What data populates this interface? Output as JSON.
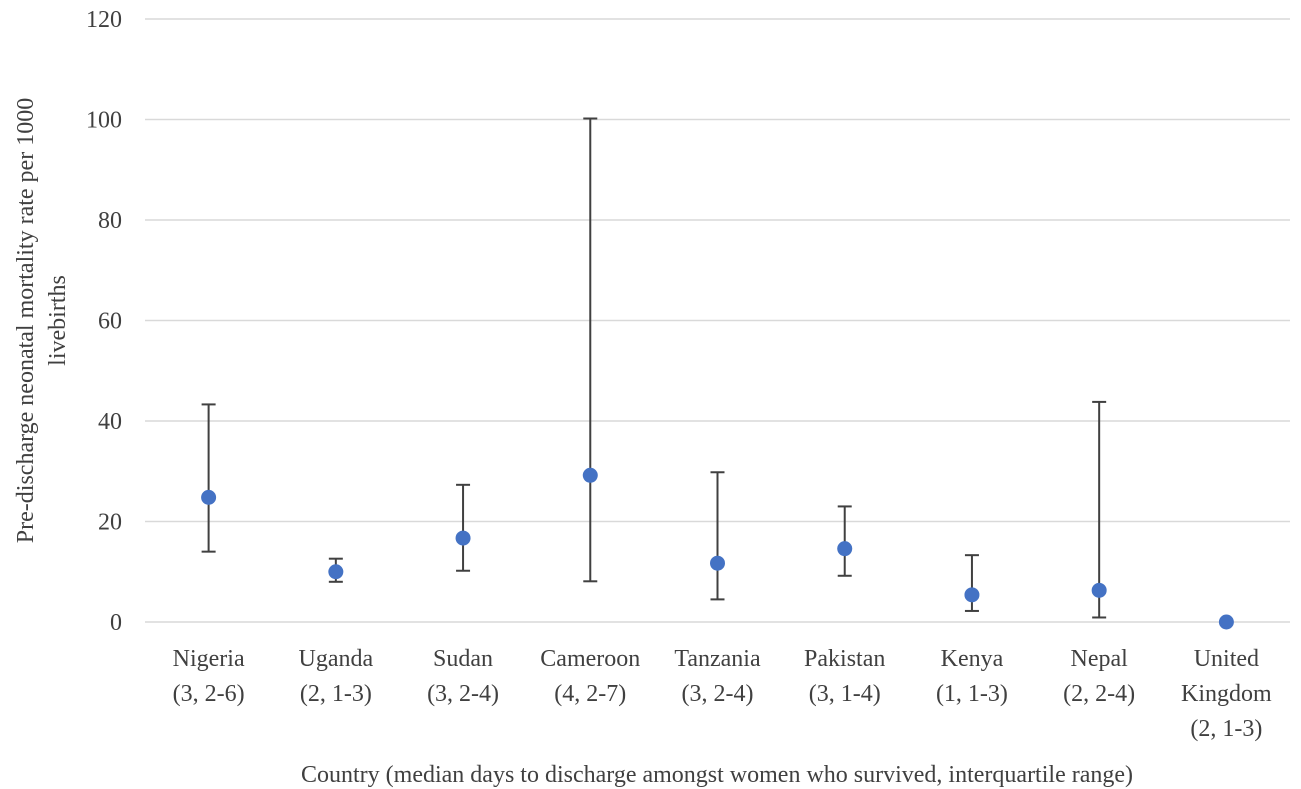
{
  "chart_data": {
    "type": "scatter",
    "title": "",
    "xlabel": "Country (median days to discharge amongst women who survived, interquartile range)",
    "ylabel_lines": [
      "Pre-discharge neonatal mortality  rate per 1000",
      "livebirths"
    ],
    "ylim": [
      0,
      120
    ],
    "yticks": [
      0,
      20,
      40,
      60,
      80,
      100,
      120
    ],
    "grid": true,
    "categories": [
      {
        "lines": [
          "Nigeria",
          "(3, 2-6)"
        ]
      },
      {
        "lines": [
          "Uganda",
          "(2, 1-3)"
        ]
      },
      {
        "lines": [
          "Sudan",
          "(3, 2-4)"
        ]
      },
      {
        "lines": [
          "Cameroon",
          "(4, 2-7)"
        ]
      },
      {
        "lines": [
          "Tanzania",
          "(3, 2-4)"
        ]
      },
      {
        "lines": [
          "Pakistan",
          "(3, 1-4)"
        ]
      },
      {
        "lines": [
          "Kenya",
          "(1, 1-3)"
        ]
      },
      {
        "lines": [
          "Nepal",
          "(2, 2-4)"
        ]
      },
      {
        "lines": [
          "United",
          "Kingdom",
          "(2, 1-3)"
        ]
      }
    ],
    "series": [
      {
        "values": [
          24.8,
          10.0,
          16.7,
          29.2,
          11.7,
          14.6,
          5.4,
          6.3,
          0.0
        ],
        "lower": [
          14.0,
          8.0,
          10.2,
          8.1,
          4.5,
          9.2,
          2.2,
          0.9,
          0.0
        ],
        "upper": [
          43.3,
          12.6,
          27.3,
          100.2,
          29.8,
          23.0,
          13.3,
          43.8,
          0.0
        ]
      }
    ],
    "marker_color": "#4472c4",
    "errorbar_color": "#404040",
    "grid_color": "#d9d9d9"
  }
}
